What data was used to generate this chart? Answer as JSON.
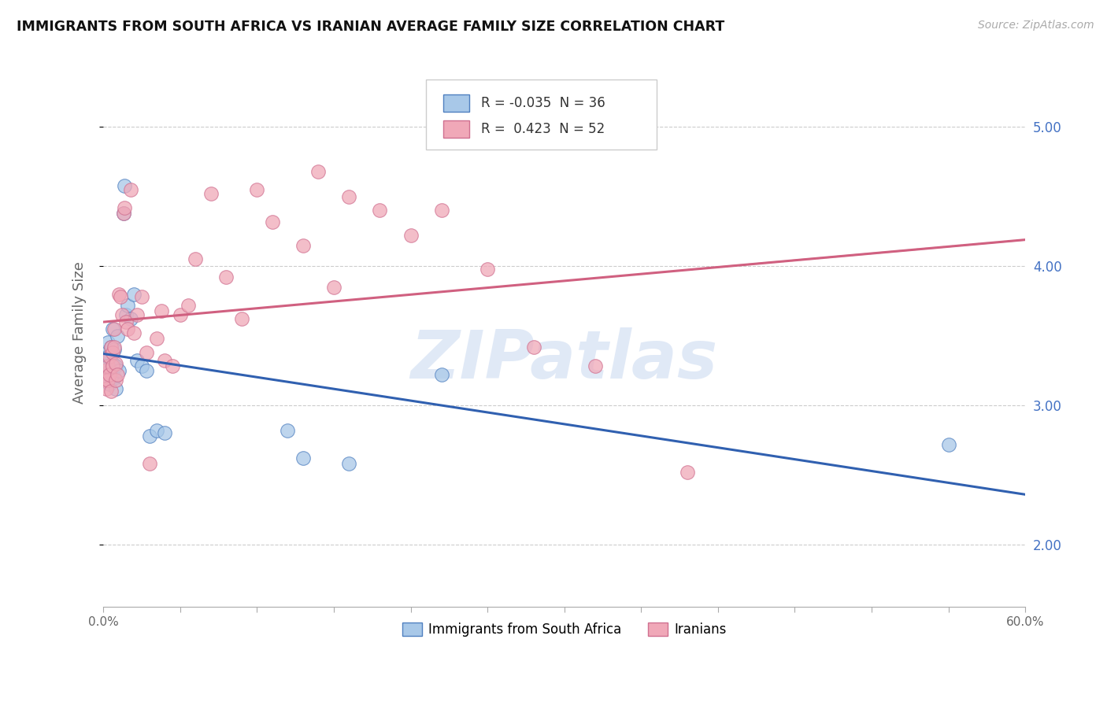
{
  "title": "IMMIGRANTS FROM SOUTH AFRICA VS IRANIAN AVERAGE FAMILY SIZE CORRELATION CHART",
  "source": "Source: ZipAtlas.com",
  "ylabel": "Average Family Size",
  "yticks": [
    2.0,
    3.0,
    4.0,
    5.0
  ],
  "xlim": [
    0.0,
    0.6
  ],
  "ylim": [
    1.55,
    5.5
  ],
  "color_sa": "#a8c8e8",
  "color_sa_edge": "#5080c0",
  "color_ir": "#f0a8b8",
  "color_ir_edge": "#d07090",
  "color_sa_line": "#3060b0",
  "color_ir_line": "#d06080",
  "watermark": "ZIPatlas",
  "watermark_color": "#c8d8f0",
  "legend_r1": "-0.035",
  "legend_n1": "36",
  "legend_r2": "0.423",
  "legend_n2": "52",
  "sa_points": [
    [
      0.001,
      3.3
    ],
    [
      0.001,
      3.22
    ],
    [
      0.001,
      3.38
    ],
    [
      0.002,
      3.18
    ],
    [
      0.002,
      3.28
    ],
    [
      0.003,
      3.45
    ],
    [
      0.003,
      3.35
    ],
    [
      0.004,
      3.25
    ],
    [
      0.004,
      3.15
    ],
    [
      0.005,
      3.42
    ],
    [
      0.005,
      3.2
    ],
    [
      0.006,
      3.55
    ],
    [
      0.006,
      3.3
    ],
    [
      0.007,
      3.4
    ],
    [
      0.007,
      3.2
    ],
    [
      0.008,
      3.12
    ],
    [
      0.008,
      3.28
    ],
    [
      0.009,
      3.5
    ],
    [
      0.01,
      3.25
    ],
    [
      0.013,
      4.38
    ],
    [
      0.014,
      4.58
    ],
    [
      0.015,
      3.65
    ],
    [
      0.016,
      3.72
    ],
    [
      0.018,
      3.62
    ],
    [
      0.02,
      3.8
    ],
    [
      0.022,
      3.32
    ],
    [
      0.025,
      3.28
    ],
    [
      0.028,
      3.25
    ],
    [
      0.03,
      2.78
    ],
    [
      0.035,
      2.82
    ],
    [
      0.04,
      2.8
    ],
    [
      0.12,
      2.82
    ],
    [
      0.13,
      2.62
    ],
    [
      0.16,
      2.58
    ],
    [
      0.22,
      3.22
    ],
    [
      0.55,
      2.72
    ]
  ],
  "ir_points": [
    [
      0.001,
      3.25
    ],
    [
      0.001,
      3.18
    ],
    [
      0.002,
      3.12
    ],
    [
      0.003,
      3.18
    ],
    [
      0.003,
      3.28
    ],
    [
      0.004,
      3.22
    ],
    [
      0.004,
      3.35
    ],
    [
      0.005,
      3.1
    ],
    [
      0.005,
      3.42
    ],
    [
      0.006,
      3.38
    ],
    [
      0.006,
      3.28
    ],
    [
      0.007,
      3.55
    ],
    [
      0.007,
      3.42
    ],
    [
      0.008,
      3.3
    ],
    [
      0.008,
      3.18
    ],
    [
      0.009,
      3.22
    ],
    [
      0.01,
      3.8
    ],
    [
      0.011,
      3.78
    ],
    [
      0.012,
      3.65
    ],
    [
      0.013,
      4.38
    ],
    [
      0.014,
      4.42
    ],
    [
      0.015,
      3.6
    ],
    [
      0.016,
      3.55
    ],
    [
      0.018,
      4.55
    ],
    [
      0.02,
      3.52
    ],
    [
      0.022,
      3.65
    ],
    [
      0.025,
      3.78
    ],
    [
      0.028,
      3.38
    ],
    [
      0.03,
      2.58
    ],
    [
      0.035,
      3.48
    ],
    [
      0.038,
      3.68
    ],
    [
      0.04,
      3.32
    ],
    [
      0.045,
      3.28
    ],
    [
      0.05,
      3.65
    ],
    [
      0.055,
      3.72
    ],
    [
      0.06,
      4.05
    ],
    [
      0.07,
      4.52
    ],
    [
      0.08,
      3.92
    ],
    [
      0.09,
      3.62
    ],
    [
      0.1,
      4.55
    ],
    [
      0.11,
      4.32
    ],
    [
      0.13,
      4.15
    ],
    [
      0.14,
      4.68
    ],
    [
      0.15,
      3.85
    ],
    [
      0.16,
      4.5
    ],
    [
      0.18,
      4.4
    ],
    [
      0.2,
      4.22
    ],
    [
      0.22,
      4.4
    ],
    [
      0.25,
      3.98
    ],
    [
      0.28,
      3.42
    ],
    [
      0.32,
      3.28
    ],
    [
      0.38,
      2.52
    ]
  ]
}
